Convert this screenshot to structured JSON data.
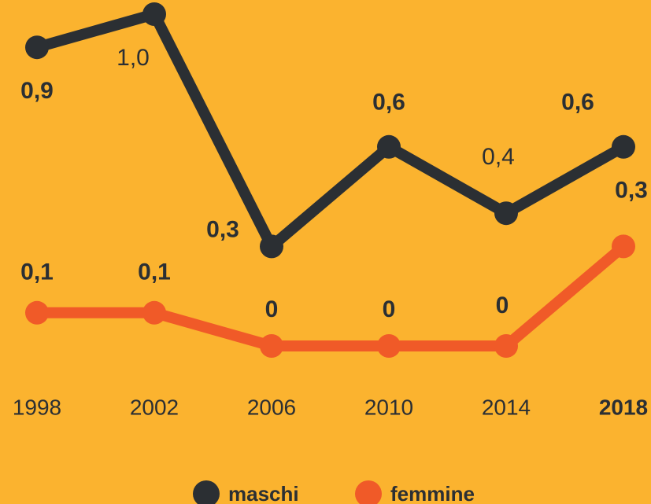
{
  "chart_data": {
    "type": "line",
    "categories": [
      "1998",
      "2002",
      "2006",
      "2010",
      "2014",
      "2018"
    ],
    "series": [
      {
        "name": "maschi",
        "color": "#2b2f33",
        "values": [
          0.9,
          1.0,
          0.3,
          0.6,
          0.4,
          0.6
        ],
        "value_labels": [
          "0,9",
          "1,0",
          "0,3",
          "0,6",
          "0,4",
          "0,6"
        ]
      },
      {
        "name": "femmine",
        "color": "#f05a28",
        "values": [
          0.1,
          0.1,
          0,
          0,
          0,
          0.3
        ],
        "value_labels": [
          "0,1",
          "0,1",
          "0",
          "0",
          "0",
          "0,3"
        ]
      }
    ]
  }
}
